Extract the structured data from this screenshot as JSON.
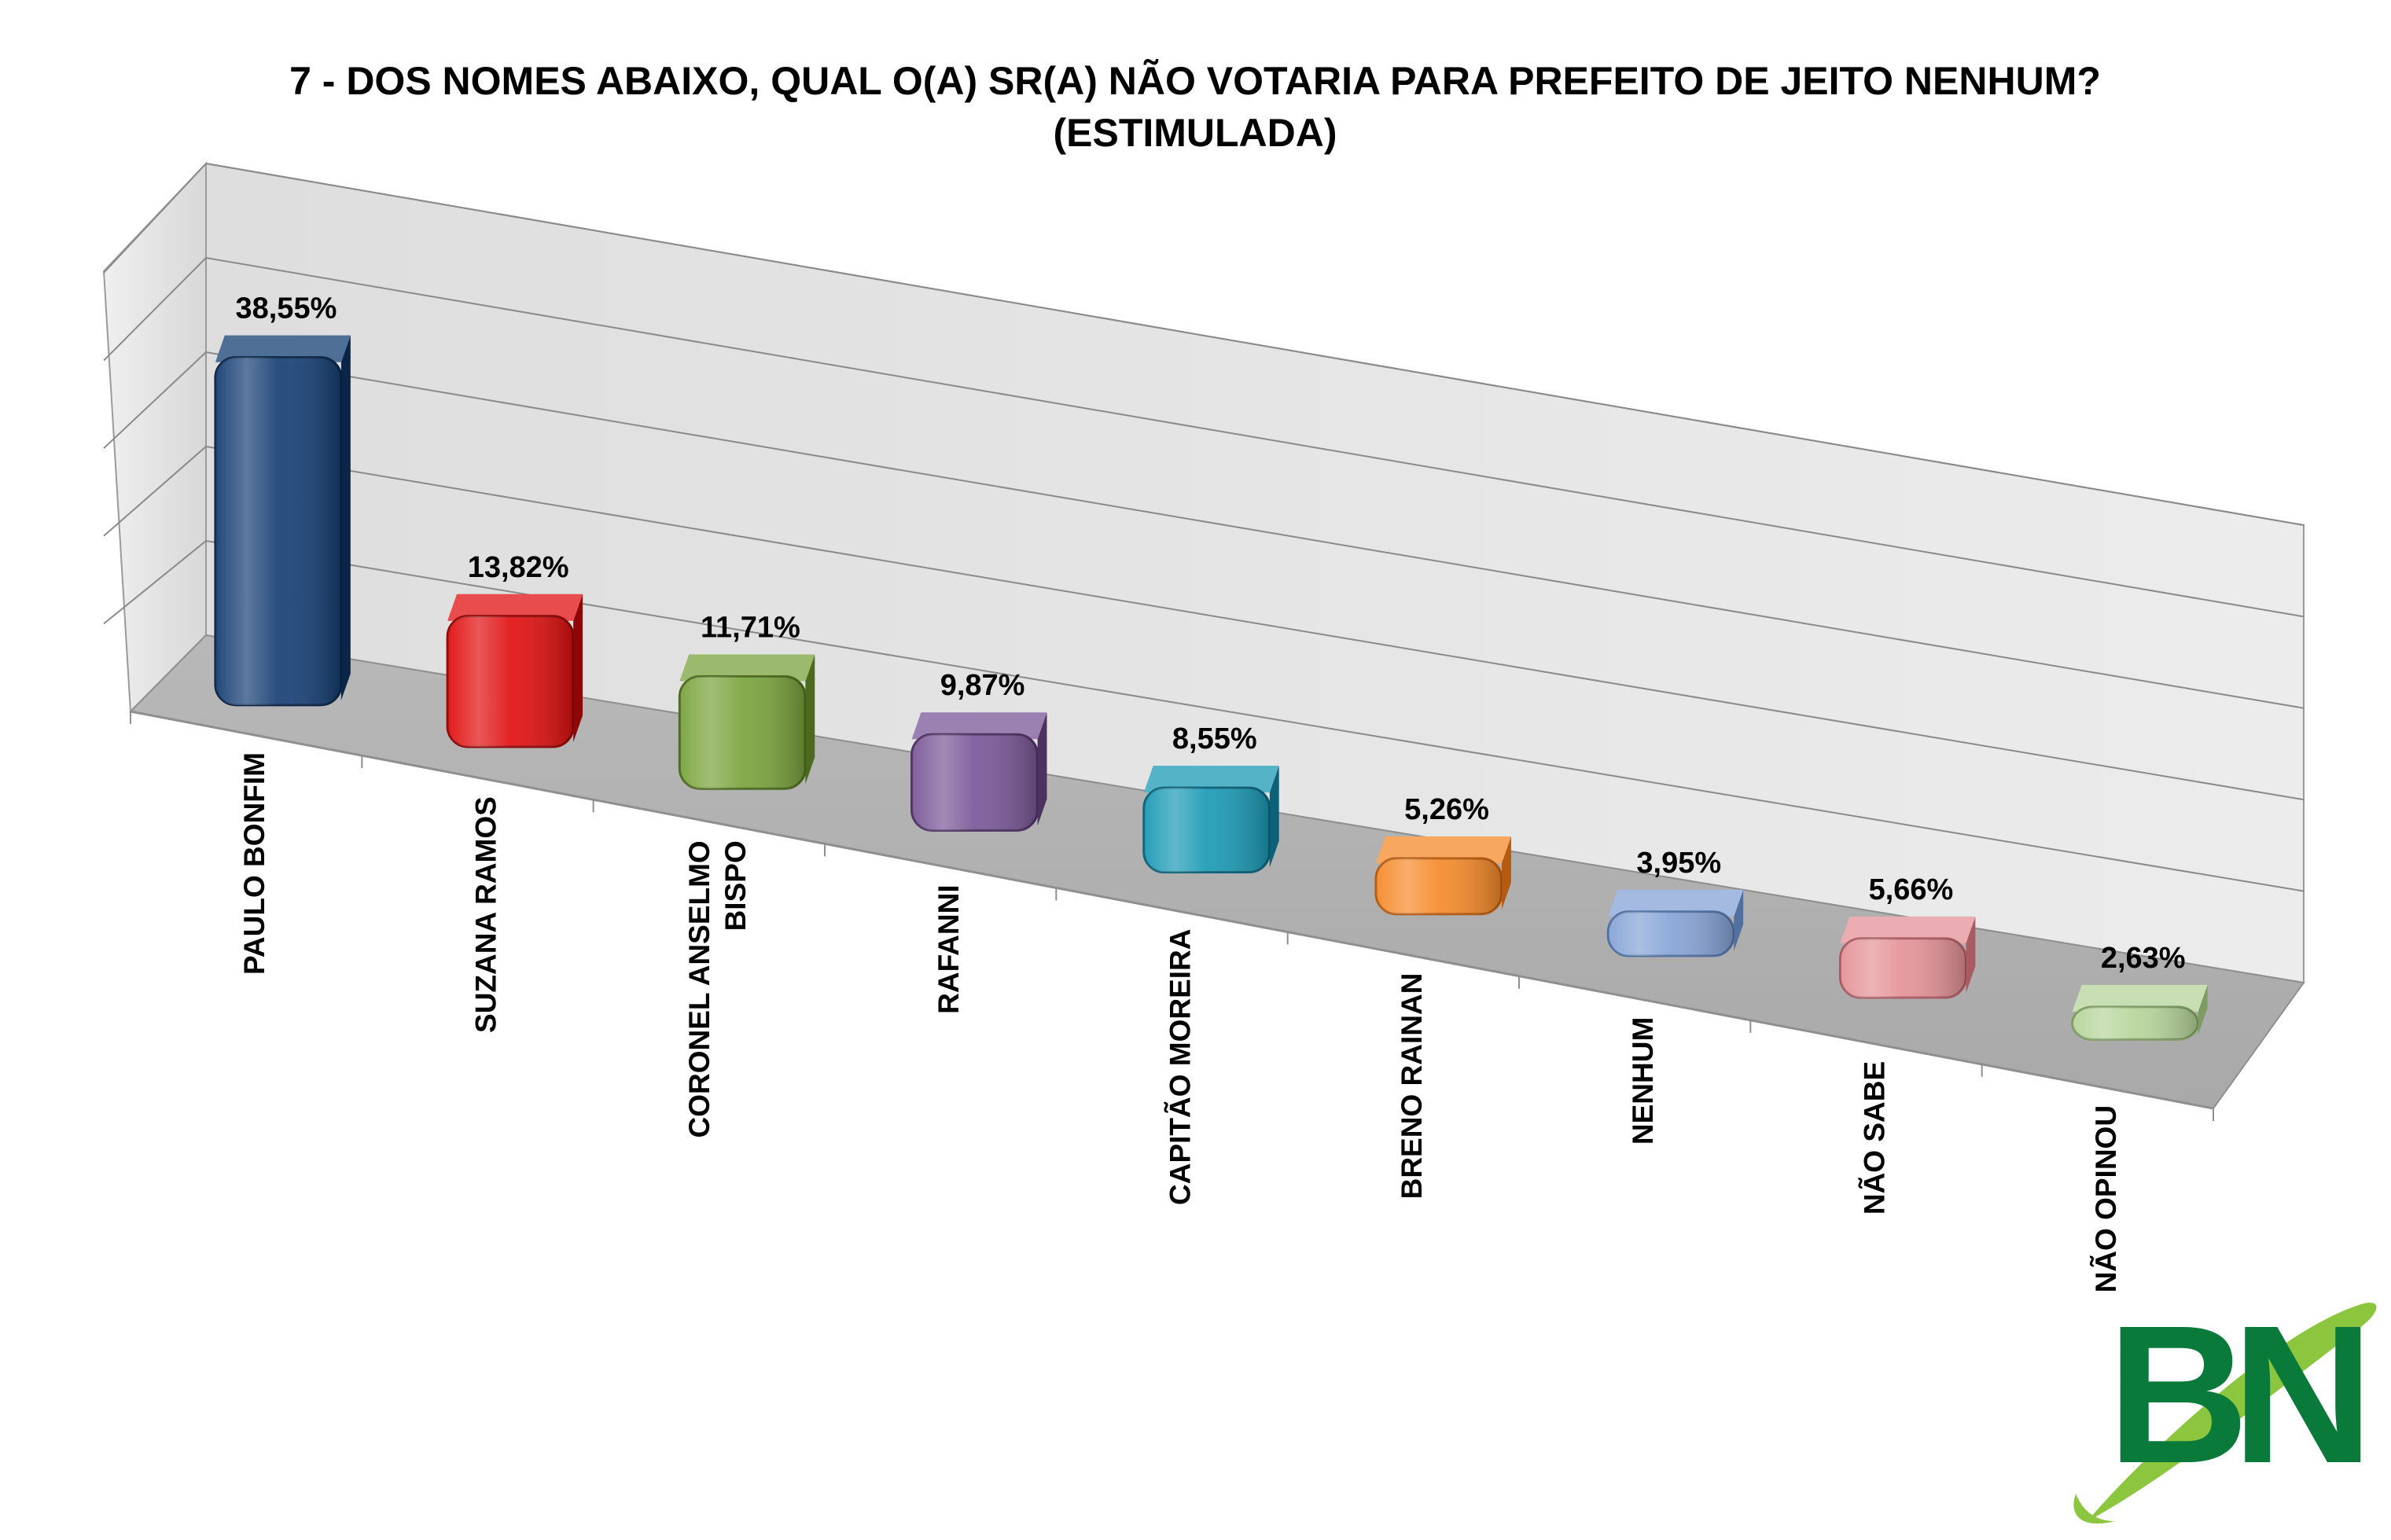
{
  "chart_data": {
    "type": "bar",
    "title": "7 -  DOS NOMES ABAIXO, QUAL O(A) SR(A) NÃO VOTARIA PARA PREFEITO DE JEITO NENHUM?",
    "subtitle": "(ESTIMULADA)",
    "xlabel": "",
    "ylabel": "",
    "ylim": [
      0,
      50
    ],
    "grid": true,
    "legend": "none",
    "categories": [
      [
        "PAULO BONFIM"
      ],
      [
        "SUZANA RAMOS"
      ],
      [
        "CORONEL ANSELMO",
        "BISPO"
      ],
      [
        "RAFANNI"
      ],
      [
        "CAPITÃO MOREIRA"
      ],
      [
        "BRENO RAINAN"
      ],
      [
        "NENHUM"
      ],
      [
        "NÃO SABE"
      ],
      [
        "NÃO OPINOU"
      ]
    ],
    "values": [
      38.55,
      13.82,
      11.71,
      9.87,
      8.55,
      5.26,
      3.95,
      5.66,
      2.63
    ],
    "data_labels": [
      "38,55%",
      "13,82%",
      "11,71%",
      "9,87%",
      "8,55%",
      "5,26%",
      "3,95%",
      "5,66%",
      "2,63%"
    ],
    "colors": [
      "#163f74",
      "#e01010",
      "#7aa33c",
      "#7a5797",
      "#1b9ab5",
      "#f58a2b",
      "#86a3d6",
      "#e49297",
      "#b7d59a"
    ],
    "colors_dark": [
      "#0b2548",
      "#8e0606",
      "#4b6a1e",
      "#4c3161",
      "#0b6178",
      "#b55a0f",
      "#51709f",
      "#aa5b62",
      "#7e9c62"
    ]
  },
  "watermark": {
    "text": "BN",
    "colors": {
      "letters": "#0a7a3a",
      "swoosh": "#8cc63f"
    }
  }
}
